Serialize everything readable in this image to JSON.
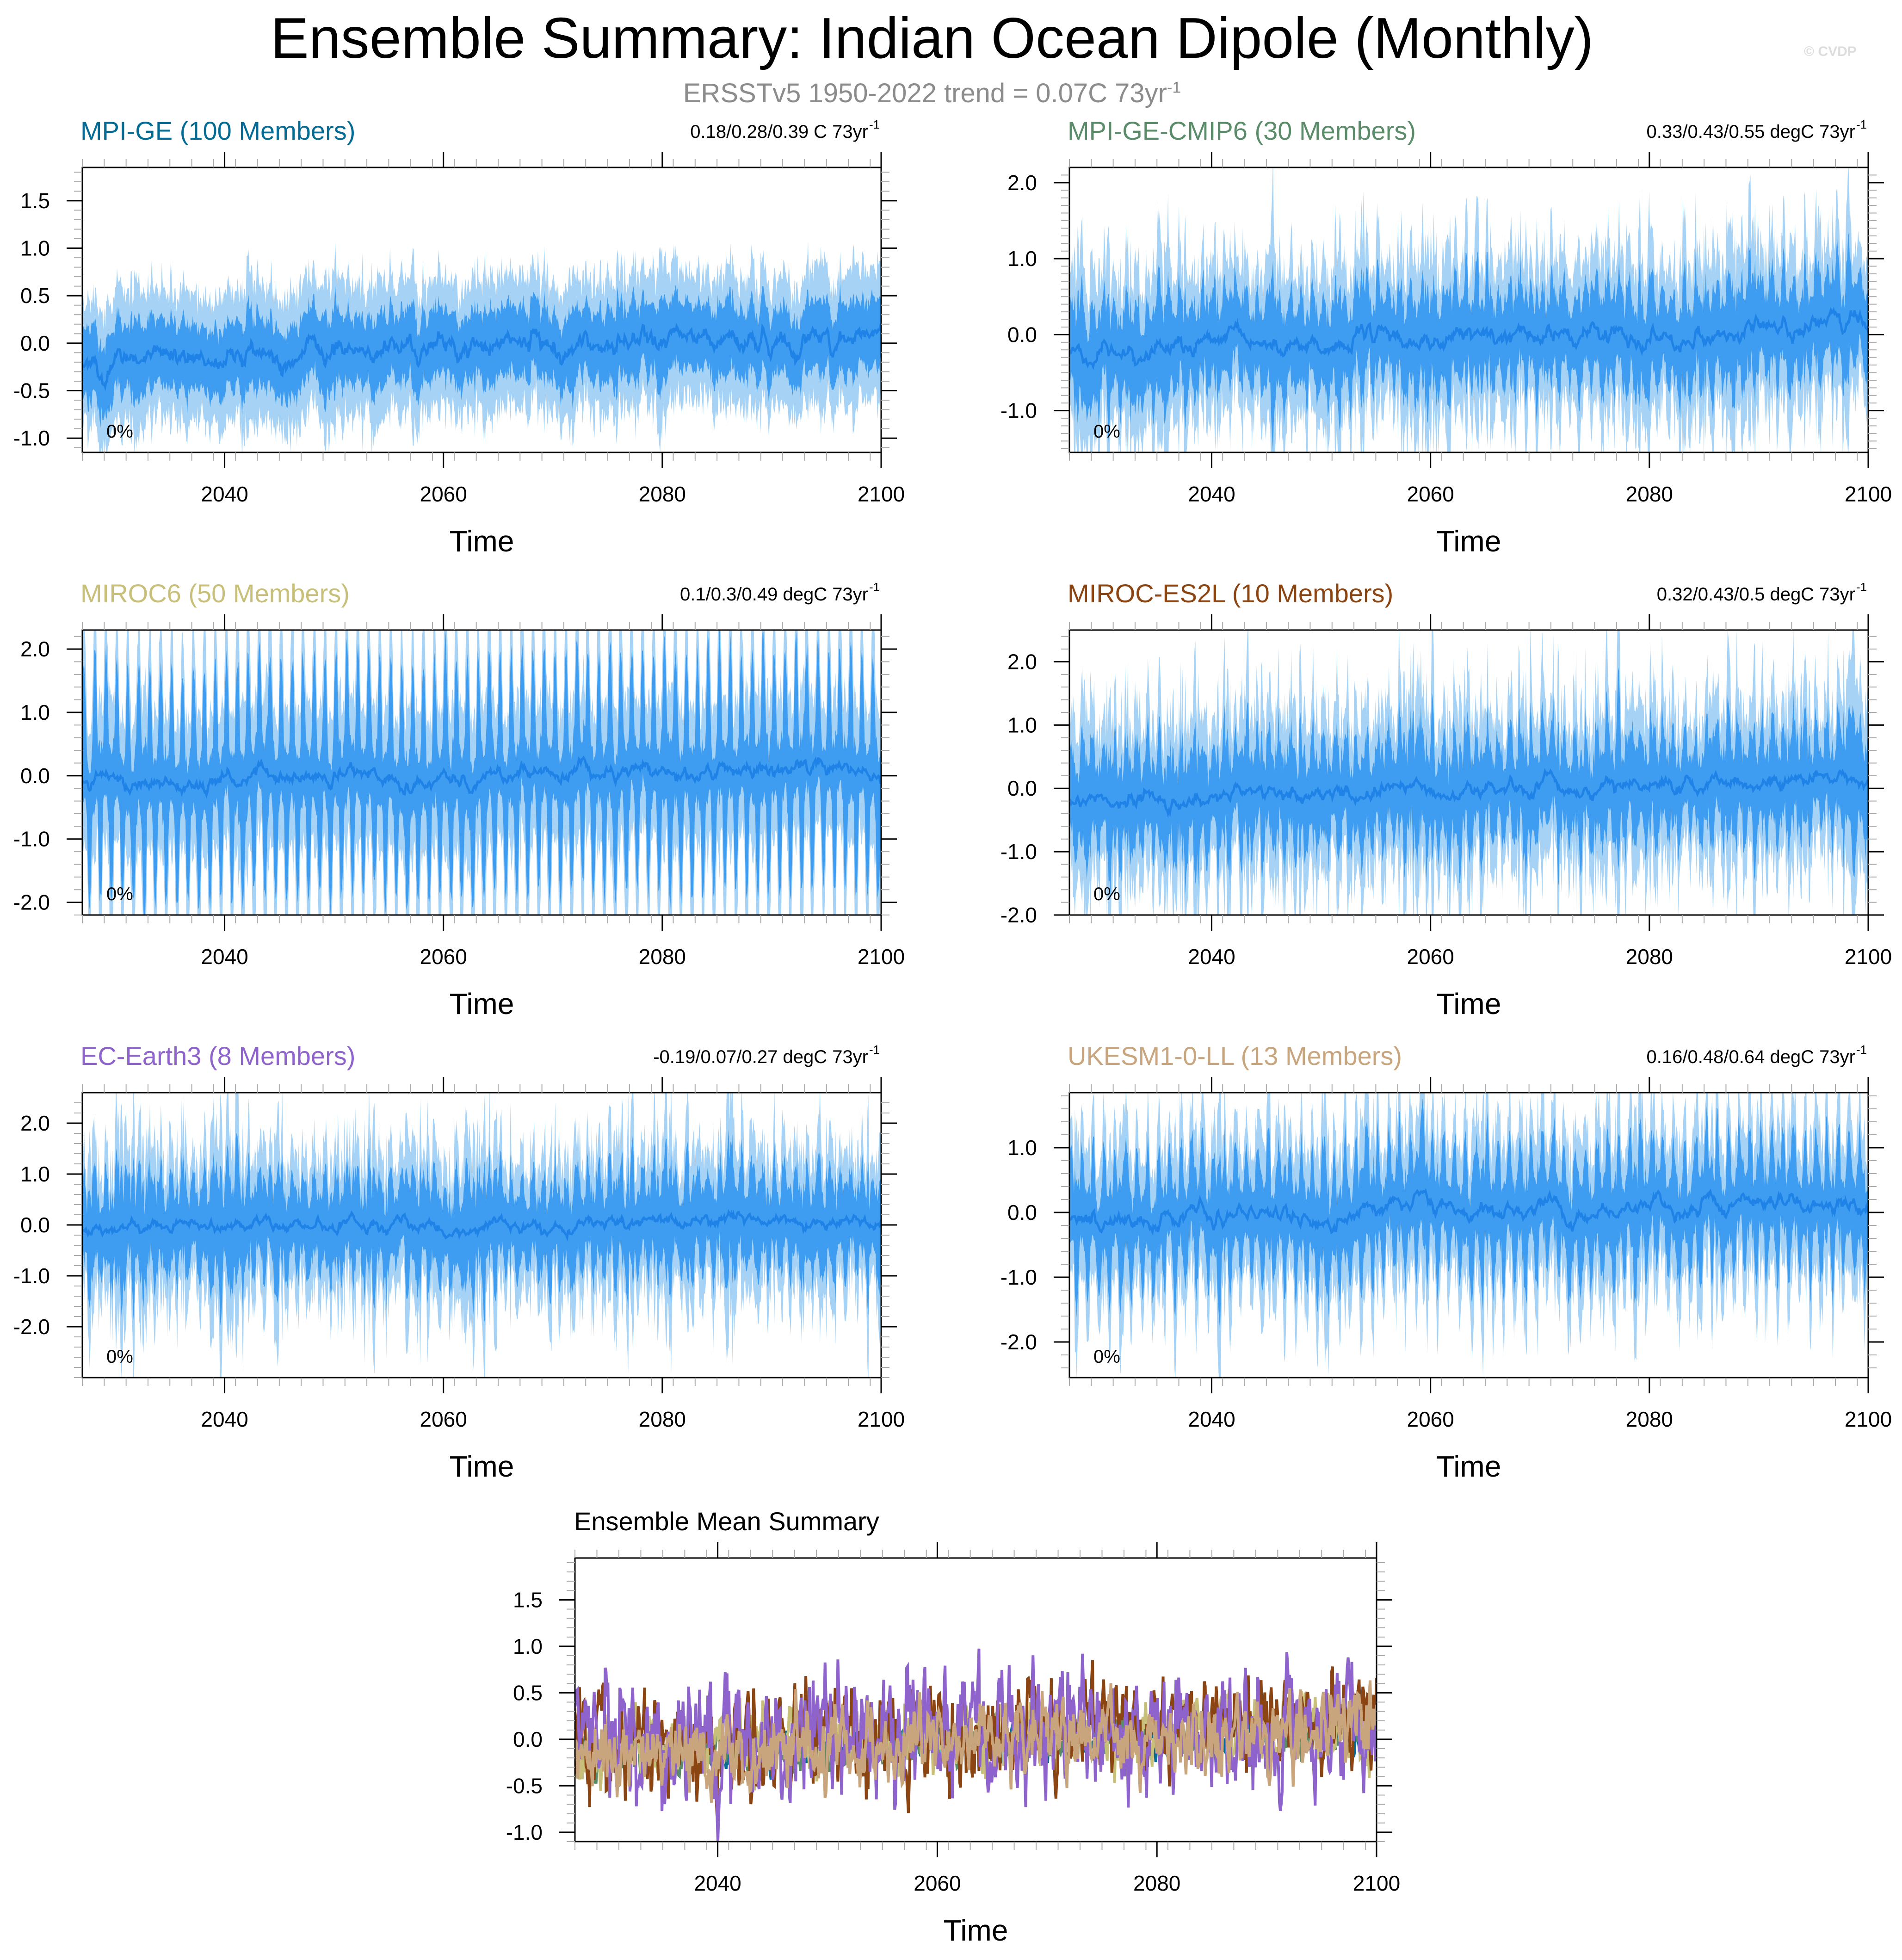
{
  "figure": {
    "title": "Ensemble Summary: Indian Ocean Dipole (Monthly)",
    "copyright": "© CVDP",
    "subtitle_main": "ERSSTv5 1950-2022 trend = 0.07C 73yr",
    "subtitle_exp": "-1"
  },
  "colors": {
    "outer_band": "#a6d3f5",
    "inner_band": "#3e9df0",
    "mean_line": "#1f82e6",
    "frame": "#000000",
    "minor_tick": "#aaaaaa"
  },
  "chart_data": [
    {
      "type": "area",
      "title": "MPI-GE (100 Members)",
      "title_color": "#046c94",
      "trend_main": "0.18/0.28/0.39 C 73yr",
      "trend_exp": "-1",
      "percent": "0%",
      "xlabel": "Time",
      "xlim": [
        2027,
        2100
      ],
      "ylim": [
        -1.15,
        1.85
      ],
      "xticks": [
        "2040",
        "2060",
        "2080",
        "2100"
      ],
      "yticks": [
        "-1.0",
        "-0.5",
        "0.0",
        "0.5",
        "1.0",
        "1.5"
      ],
      "band_stats": {
        "start_mean": -0.17,
        "end_mean": 0.08,
        "outer_halfwidth": 0.55,
        "inner_halfwidth": 0.28,
        "spike": 0.2,
        "cycle_amp": 0.05
      }
    },
    {
      "type": "area",
      "title": "MPI-GE-CMIP6 (30 Members)",
      "title_color": "#5b8c6a",
      "trend_main": "0.33/0.43/0.55 degC 73yr",
      "trend_exp": "-1",
      "percent": "0%",
      "xlabel": "Time",
      "xlim": [
        2027,
        2100
      ],
      "ylim": [
        -1.55,
        2.2
      ],
      "xticks": [
        "2040",
        "2060",
        "2080",
        "2100"
      ],
      "yticks": [
        "-1.0",
        "0.0",
        "1.0",
        "2.0"
      ],
      "band_stats": {
        "start_mean": -0.22,
        "end_mean": 0.12,
        "outer_halfwidth": 0.6,
        "inner_halfwidth": 0.3,
        "spike": 0.55,
        "cycle_amp": 0.2
      }
    },
    {
      "type": "area",
      "title": "MIROC6 (50 Members)",
      "title_color": "#c8c07a",
      "trend_main": "0.1/0.3/0.49 degC 73yr",
      "trend_exp": "-1",
      "percent": "0%",
      "xlabel": "Time",
      "xlim": [
        2027,
        2100
      ],
      "ylim": [
        -2.2,
        2.3
      ],
      "xticks": [
        "2040",
        "2060",
        "2080",
        "2100"
      ],
      "yticks": [
        "-2.0",
        "-1.0",
        "0.0",
        "1.0",
        "2.0"
      ],
      "band_stats": {
        "start_mean": -0.1,
        "end_mean": 0.12,
        "outer_halfwidth": 0.8,
        "inner_halfwidth": 0.4,
        "spike": 0.4,
        "cycle_amp": 0.9
      }
    },
    {
      "type": "area",
      "title": "MIROC-ES2L (10 Members)",
      "title_color": "#8b4513",
      "trend_main": "0.32/0.43/0.5 degC 73yr",
      "trend_exp": "-1",
      "percent": "0%",
      "xlabel": "Time",
      "xlim": [
        2027,
        2100
      ],
      "ylim": [
        -2.0,
        2.5
      ],
      "xticks": [
        "2040",
        "2060",
        "2080",
        "2100"
      ],
      "yticks": [
        "-2.0",
        "-1.0",
        "0.0",
        "1.0",
        "2.0"
      ],
      "band_stats": {
        "start_mean": -0.2,
        "end_mean": 0.18,
        "outer_halfwidth": 0.65,
        "inner_halfwidth": 0.32,
        "spike": 0.8,
        "cycle_amp": 0.3
      }
    },
    {
      "type": "area",
      "title": "EC-Earth3 (8 Members)",
      "title_color": "#8e63cc",
      "trend_main": "-0.19/0.07/0.27 degC 73yr",
      "trend_exp": "-1",
      "percent": "0%",
      "xlabel": "Time",
      "xlim": [
        2027,
        2100
      ],
      "ylim": [
        -3.0,
        2.6
      ],
      "xticks": [
        "2040",
        "2060",
        "2080",
        "2100"
      ],
      "yticks": [
        "-2.0",
        "-1.0",
        "0.0",
        "1.0",
        "2.0"
      ],
      "band_stats": {
        "start_mean": -0.05,
        "end_mean": 0.05,
        "outer_halfwidth": 0.7,
        "inner_halfwidth": 0.38,
        "spike": 0.9,
        "cycle_amp": 0.35
      }
    },
    {
      "type": "area",
      "title": "UKESM1-0-LL (13 Members)",
      "title_color": "#c9a57e",
      "trend_main": "0.16/0.48/0.64 degC 73yr",
      "trend_exp": "-1",
      "percent": "0%",
      "xlabel": "Time",
      "xlim": [
        2027,
        2100
      ],
      "ylim": [
        -2.55,
        1.85
      ],
      "xticks": [
        "2040",
        "2060",
        "2080",
        "2100"
      ],
      "yticks": [
        "-2.0",
        "-1.0",
        "0.0",
        "1.0"
      ],
      "band_stats": {
        "start_mean": -0.1,
        "end_mean": 0.15,
        "outer_halfwidth": 0.6,
        "inner_halfwidth": 0.3,
        "spike": 0.6,
        "cycle_amp": 0.45
      }
    },
    {
      "type": "line",
      "title": "Ensemble Mean Summary",
      "title_color": "#000000",
      "xlabel": "Time",
      "xlim": [
        2027,
        2100
      ],
      "ylim": [
        -1.1,
        1.95
      ],
      "xticks": [
        "2040",
        "2060",
        "2080",
        "2100"
      ],
      "yticks": [
        "-1.0",
        "-0.5",
        "0.0",
        "0.5",
        "1.0",
        "1.5"
      ],
      "series": [
        {
          "color": "#046c94",
          "amp": 0.1,
          "trend": [
            -0.15,
            0.08
          ]
        },
        {
          "color": "#5b8c6a",
          "amp": 0.12,
          "trend": [
            -0.2,
            0.1
          ]
        },
        {
          "color": "#c8c07a",
          "amp": 0.2,
          "trend": [
            -0.1,
            0.12
          ]
        },
        {
          "color": "#8b4513",
          "amp": 0.28,
          "trend": [
            -0.15,
            0.25
          ]
        },
        {
          "color": "#8e63cc",
          "amp": 0.38,
          "trend": [
            -0.05,
            0.08
          ]
        },
        {
          "color": "#c9a57e",
          "amp": 0.22,
          "trend": [
            -0.15,
            0.15
          ]
        }
      ]
    }
  ]
}
